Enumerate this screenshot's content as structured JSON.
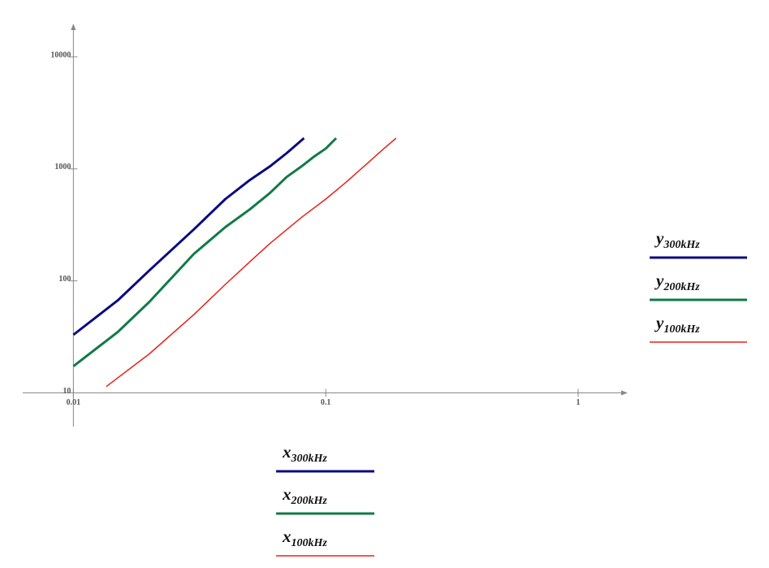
{
  "chart_data": {
    "type": "line",
    "log_x": true,
    "log_y": true,
    "xlim": [
      0.0063,
      1.56
    ],
    "ylim": [
      5,
      19500
    ],
    "xticks": [
      0.01,
      0.1,
      1
    ],
    "yticks": [
      10,
      100,
      1000,
      10000
    ],
    "series": [
      {
        "x_label": {
          "text": "x",
          "sub": "300kHz"
        },
        "y_label": {
          "text": "y",
          "sub": "300kHz"
        },
        "color": "#0b0b80",
        "width": 3,
        "x": [
          0.01,
          0.015,
          0.02,
          0.03,
          0.04,
          0.05,
          0.06,
          0.07,
          0.082
        ],
        "values": [
          33,
          67,
          124,
          288,
          537,
          795,
          1050,
          1380,
          1880
        ]
      },
      {
        "x_label": {
          "text": "x",
          "sub": "200kHz"
        },
        "y_label": {
          "text": "y",
          "sub": "200kHz"
        },
        "color": "#127a48",
        "width": 3,
        "x": [
          0.01,
          0.015,
          0.02,
          0.03,
          0.04,
          0.05,
          0.06,
          0.07,
          0.08,
          0.09,
          0.1,
          0.11
        ],
        "values": [
          17.3,
          35,
          65,
          174,
          302,
          435,
          607,
          846,
          1050,
          1290,
          1520,
          1880
        ]
      },
      {
        "x_label": {
          "text": "x",
          "sub": "100kHz"
        },
        "y_label": {
          "text": "y",
          "sub": "100kHz"
        },
        "color": "#e8201a",
        "width": 1.5,
        "x": [
          0.0135,
          0.02,
          0.03,
          0.04,
          0.05,
          0.06,
          0.08,
          0.1,
          0.12,
          0.15,
          0.17,
          0.19
        ],
        "values": [
          11.4,
          22.3,
          50,
          93,
          148,
          215,
          368,
          537,
          756,
          1180,
          1520,
          1880
        ]
      }
    ]
  }
}
